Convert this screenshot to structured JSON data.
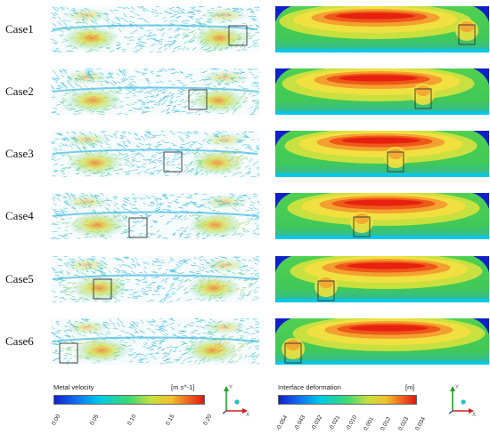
{
  "cases": [
    {
      "label": "Case1"
    },
    {
      "label": "Case2"
    },
    {
      "label": "Case3"
    },
    {
      "label": "Case4"
    },
    {
      "label": "Case5"
    },
    {
      "label": "Case6"
    }
  ],
  "velocity_legend": {
    "title": "Metal velocity",
    "unit": "[m s^-1]",
    "ticks": [
      "0.00",
      "0.05",
      "0.10",
      "0.15",
      "0.20"
    ]
  },
  "deformation_legend": {
    "title": "Interface deformation",
    "unit": "[m]",
    "ticks": [
      "-0.054",
      "-0.043",
      "-0.032",
      "-0.021",
      "-0.010",
      "0.001",
      "0.012",
      "0.023",
      "0.034"
    ]
  },
  "axes": {
    "x": "X",
    "y": "Y"
  },
  "colors": {
    "jet_blue": "#1020c8",
    "jet_cyan": "#00c8e8",
    "jet_green": "#40d040",
    "jet_yellow": "#f0e040",
    "jet_red": "#e82010",
    "highlight_box": "#333333"
  }
}
